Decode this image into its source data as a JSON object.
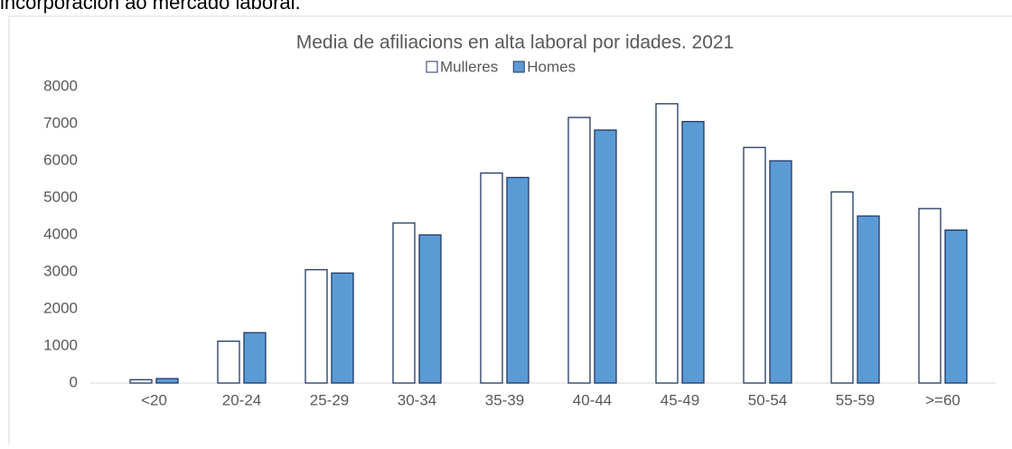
{
  "text": "incorporación ao mercado laboral.",
  "chart_data": {
    "type": "bar",
    "title": "Media de afiliacions en alta laboral por idades. 2021",
    "categories": [
      "<20",
      "20-24",
      "25-29",
      "30-34",
      "35-39",
      "40-44",
      "45-49",
      "50-54",
      "55-59",
      ">=60"
    ],
    "series": [
      {
        "name": "Mulleres",
        "color": "#ffffff",
        "values": [
          90,
          1130,
          3060,
          4320,
          5670,
          7170,
          7540,
          6360,
          5160,
          4710
        ]
      },
      {
        "name": "Homes",
        "color": "#5b9bd5",
        "values": [
          120,
          1360,
          2970,
          4000,
          5550,
          6830,
          7060,
          6000,
          4510,
          4130
        ]
      }
    ],
    "ylim": [
      0,
      8000
    ],
    "yticks": [
      0,
      1000,
      2000,
      3000,
      4000,
      5000,
      6000,
      7000,
      8000
    ],
    "grid": false,
    "legend": "top"
  }
}
